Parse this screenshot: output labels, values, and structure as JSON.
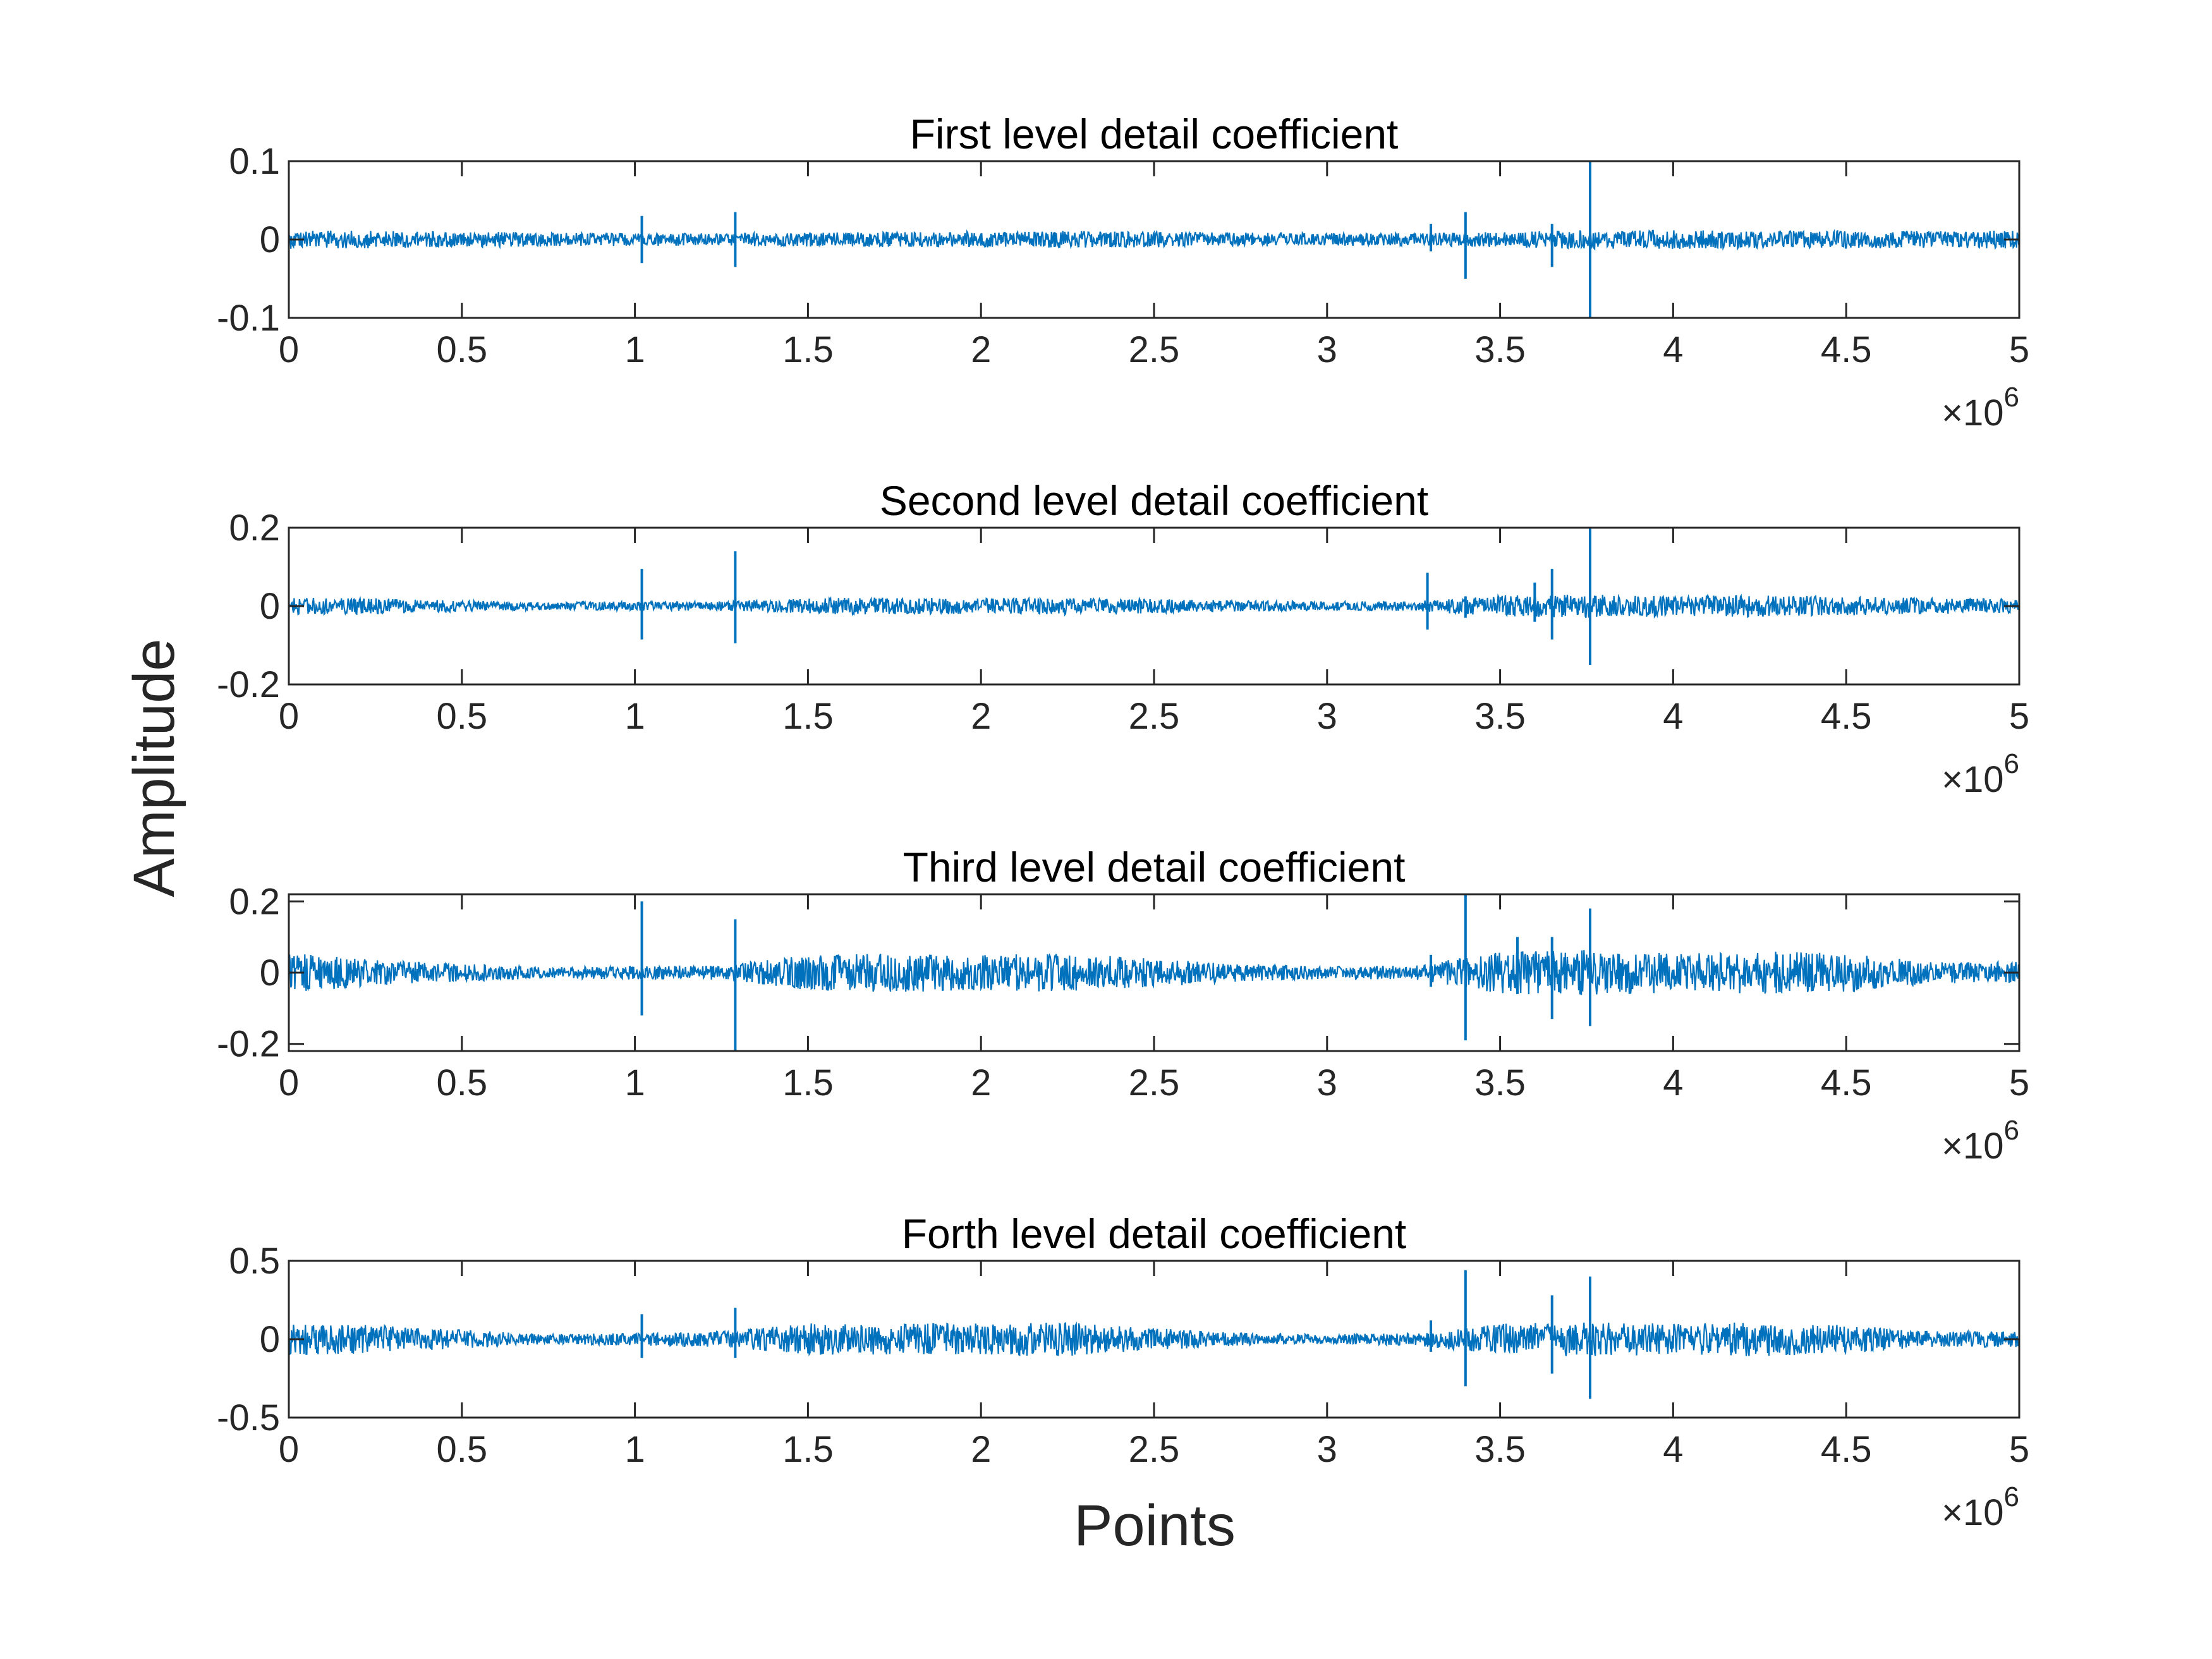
{
  "figure": {
    "ylabel": "Amplitude",
    "xlabel": "Points",
    "x_exponent": "×10",
    "x_exponent_power": "6",
    "line_color": "#0072bd"
  },
  "chart_data": [
    {
      "type": "line",
      "title": "First level detail coefficient",
      "xlim": [
        0,
        5000000
      ],
      "ylim": [
        -0.1,
        0.1
      ],
      "x_ticks": [
        0,
        0.5,
        1,
        1.5,
        2,
        2.5,
        3,
        3.5,
        4,
        4.5,
        5
      ],
      "x_tick_labels": [
        "0",
        "0.5",
        "1",
        "1.5",
        "2",
        "2.5",
        "3",
        "3.5",
        "4",
        "4.5",
        "5"
      ],
      "y_ticks": [
        -0.1,
        0,
        0.1
      ],
      "y_tick_labels": [
        "-0.1",
        "0",
        "0.1"
      ],
      "envelope_points": [
        0,
        0.25,
        0.5,
        0.75,
        1.0,
        1.25,
        1.5,
        1.75,
        2.0,
        2.25,
        2.5,
        2.75,
        3.0,
        3.25,
        3.5,
        3.75,
        4.0,
        4.25,
        4.5,
        4.75,
        5.0
      ],
      "envelope_amplitude": [
        0.012,
        0.011,
        0.01,
        0.009,
        0.008,
        0.008,
        0.009,
        0.01,
        0.01,
        0.011,
        0.01,
        0.009,
        0.008,
        0.008,
        0.01,
        0.012,
        0.012,
        0.011,
        0.011,
        0.011,
        0.012
      ],
      "spikes": [
        {
          "x": 1.02,
          "low": -0.03,
          "high": 0.03
        },
        {
          "x": 1.29,
          "low": -0.035,
          "high": 0.035
        },
        {
          "x": 3.3,
          "low": -0.015,
          "high": 0.02
        },
        {
          "x": 3.4,
          "low": -0.05,
          "high": 0.035
        },
        {
          "x": 3.65,
          "low": -0.035,
          "high": 0.02
        },
        {
          "x": 3.76,
          "low": -0.105,
          "high": 0.105
        }
      ]
    },
    {
      "type": "line",
      "title": "Second level detail coefficient",
      "xlim": [
        0,
        5000000
      ],
      "ylim": [
        -0.2,
        0.2
      ],
      "x_ticks": [
        0,
        0.5,
        1,
        1.5,
        2,
        2.5,
        3,
        3.5,
        4,
        4.5,
        5
      ],
      "x_tick_labels": [
        "0",
        "0.5",
        "1",
        "1.5",
        "2",
        "2.5",
        "3",
        "3.5",
        "4",
        "4.5",
        "5"
      ],
      "y_ticks": [
        -0.2,
        0,
        0.2
      ],
      "y_tick_labels": [
        "-0.2",
        "0",
        "0.2"
      ],
      "envelope_points": [
        0,
        0.25,
        0.5,
        0.75,
        1.0,
        1.25,
        1.5,
        1.75,
        2.0,
        2.25,
        2.5,
        2.75,
        3.0,
        3.25,
        3.5,
        3.75,
        4.0,
        4.25,
        4.5,
        4.75,
        5.0
      ],
      "envelope_amplitude": [
        0.022,
        0.02,
        0.014,
        0.01,
        0.012,
        0.012,
        0.02,
        0.022,
        0.02,
        0.022,
        0.018,
        0.014,
        0.012,
        0.012,
        0.028,
        0.03,
        0.026,
        0.028,
        0.024,
        0.02,
        0.018
      ],
      "spikes": [
        {
          "x": 1.02,
          "low": -0.085,
          "high": 0.095
        },
        {
          "x": 1.29,
          "low": -0.095,
          "high": 0.14
        },
        {
          "x": 3.29,
          "low": -0.06,
          "high": 0.085
        },
        {
          "x": 3.4,
          "low": -0.03,
          "high": 0.025
        },
        {
          "x": 3.6,
          "low": -0.04,
          "high": 0.06
        },
        {
          "x": 3.65,
          "low": -0.085,
          "high": 0.095
        },
        {
          "x": 3.76,
          "low": -0.15,
          "high": 0.2
        }
      ]
    },
    {
      "type": "line",
      "title": "Third level detail coefficient",
      "xlim": [
        0,
        5000000
      ],
      "ylim": [
        -0.22,
        0.22
      ],
      "x_ticks": [
        0,
        0.5,
        1,
        1.5,
        2,
        2.5,
        3,
        3.5,
        4,
        4.5,
        5
      ],
      "x_tick_labels": [
        "0",
        "0.5",
        "1",
        "1.5",
        "2",
        "2.5",
        "3",
        "3.5",
        "4",
        "4.5",
        "5"
      ],
      "y_ticks": [
        -0.2,
        0,
        0.2
      ],
      "y_tick_labels": [
        "-0.2",
        "0",
        "0.2"
      ],
      "envelope_points": [
        0,
        0.25,
        0.5,
        0.75,
        1.0,
        1.25,
        1.5,
        1.75,
        2.0,
        2.25,
        2.5,
        2.75,
        3.0,
        3.25,
        3.5,
        3.75,
        4.0,
        4.25,
        4.5,
        4.75,
        5.0
      ],
      "envelope_amplitude": [
        0.06,
        0.035,
        0.025,
        0.015,
        0.02,
        0.02,
        0.05,
        0.055,
        0.05,
        0.055,
        0.04,
        0.025,
        0.018,
        0.02,
        0.06,
        0.065,
        0.055,
        0.06,
        0.055,
        0.03,
        0.03
      ],
      "spikes": [
        {
          "x": 1.02,
          "low": -0.12,
          "high": 0.2
        },
        {
          "x": 1.29,
          "low": -0.22,
          "high": 0.15
        },
        {
          "x": 3.3,
          "low": -0.04,
          "high": 0.05
        },
        {
          "x": 3.4,
          "low": -0.19,
          "high": 0.22
        },
        {
          "x": 3.55,
          "low": -0.06,
          "high": 0.1
        },
        {
          "x": 3.65,
          "low": -0.13,
          "high": 0.1
        },
        {
          "x": 3.76,
          "low": -0.15,
          "high": 0.18
        }
      ]
    },
    {
      "type": "line",
      "title": "Forth level detail coefficient",
      "xlim": [
        0,
        5000000
      ],
      "ylim": [
        -0.5,
        0.5
      ],
      "x_ticks": [
        0,
        0.5,
        1,
        1.5,
        2,
        2.5,
        3,
        3.5,
        4,
        4.5,
        5
      ],
      "x_tick_labels": [
        "0",
        "0.5",
        "1",
        "1.5",
        "2",
        "2.5",
        "3",
        "3.5",
        "4",
        "4.5",
        "5"
      ],
      "y_ticks": [
        -0.5,
        0,
        0.5
      ],
      "y_tick_labels": [
        "-0.5",
        "0",
        "0.5"
      ],
      "envelope_points": [
        0,
        0.25,
        0.5,
        0.75,
        1.0,
        1.25,
        1.5,
        1.75,
        2.0,
        2.25,
        2.5,
        2.75,
        3.0,
        3.25,
        3.5,
        3.75,
        4.0,
        4.25,
        4.5,
        4.75,
        5.0
      ],
      "envelope_amplitude": [
        0.1,
        0.09,
        0.06,
        0.03,
        0.04,
        0.05,
        0.1,
        0.1,
        0.1,
        0.11,
        0.07,
        0.04,
        0.03,
        0.04,
        0.1,
        0.11,
        0.1,
        0.11,
        0.09,
        0.05,
        0.05
      ],
      "spikes": [
        {
          "x": 1.02,
          "low": -0.12,
          "high": 0.16
        },
        {
          "x": 1.29,
          "low": -0.12,
          "high": 0.2
        },
        {
          "x": 3.3,
          "low": -0.08,
          "high": 0.12
        },
        {
          "x": 3.4,
          "low": -0.3,
          "high": 0.44
        },
        {
          "x": 3.65,
          "low": -0.22,
          "high": 0.28
        },
        {
          "x": 3.76,
          "low": -0.38,
          "high": 0.4
        }
      ]
    }
  ]
}
